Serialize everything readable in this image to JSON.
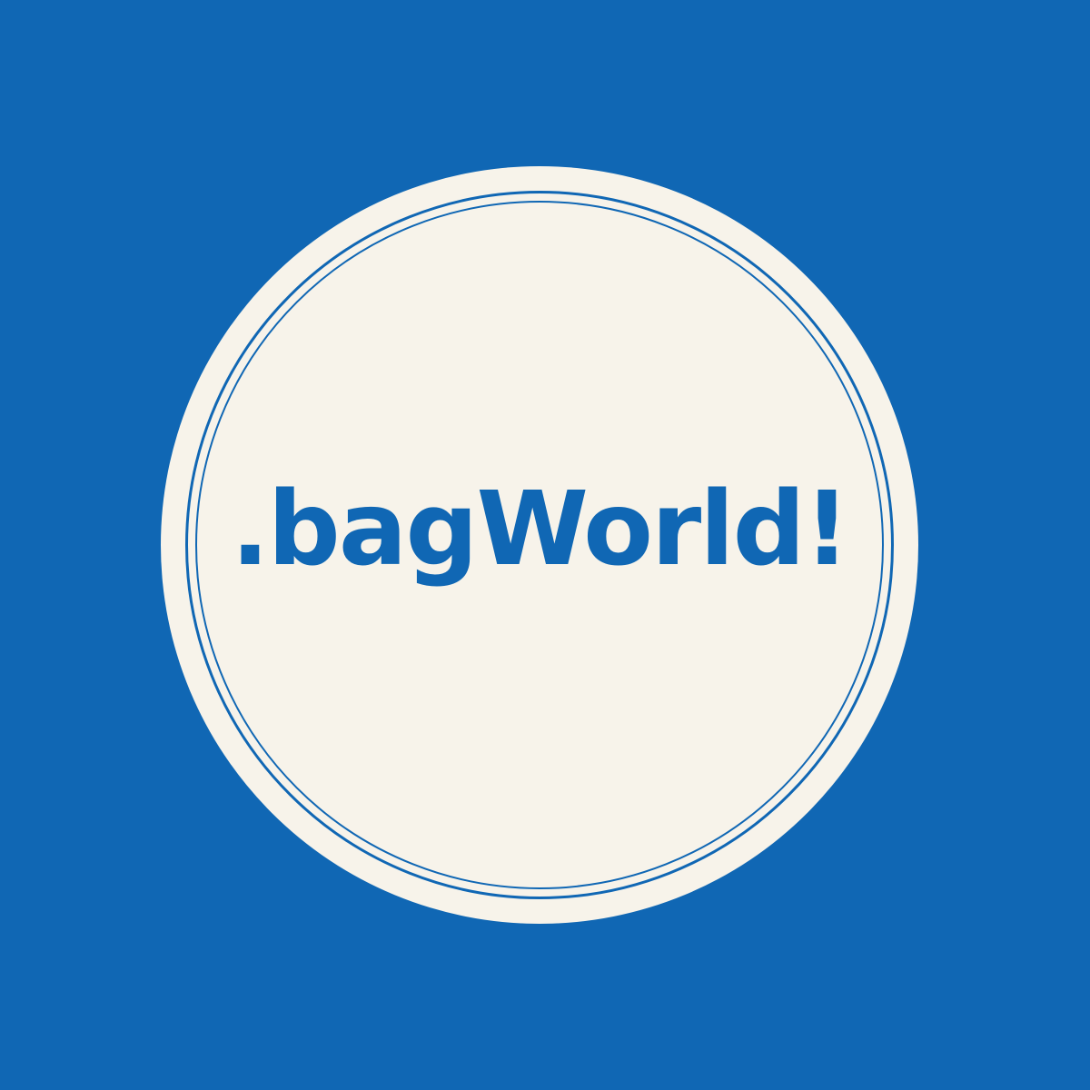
{
  "colors": {
    "background": "#1067b4",
    "badge_fill": "#f7f3ea",
    "accent": "#1067b4"
  },
  "logo": {
    "wordmark": ".bagWorld!"
  }
}
